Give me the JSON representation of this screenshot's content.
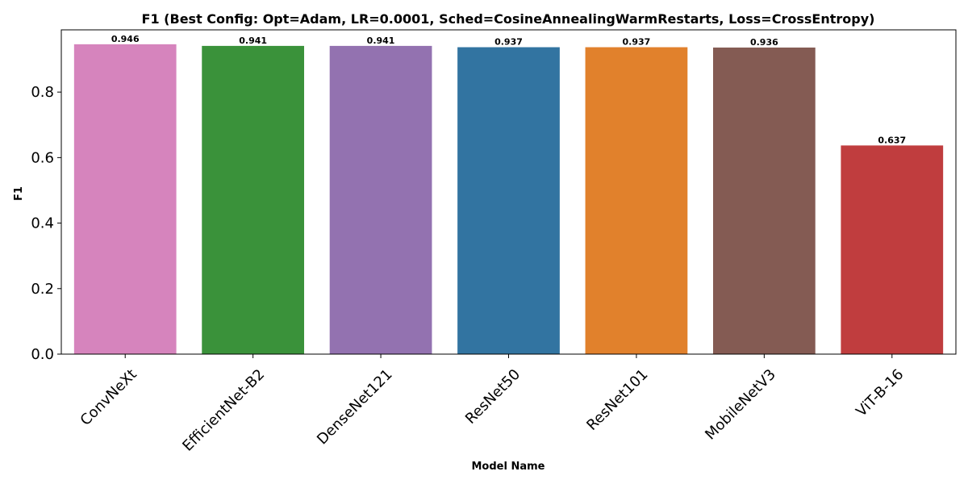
{
  "chart_data": {
    "type": "bar",
    "title": "F1 (Best Config: Opt=Adam, LR=0.0001, Sched=CosineAnnealingWarmRestarts, Loss=CrossEntropy)",
    "xlabel": "Model Name",
    "ylabel": "F1",
    "categories": [
      "ConvNeXt",
      "EfficientNet-B2",
      "DenseNet121",
      "ResNet50",
      "ResNet101",
      "MobileNetV3",
      "ViT-B-16"
    ],
    "values": [
      0.946,
      0.941,
      0.941,
      0.937,
      0.937,
      0.936,
      0.637
    ],
    "data_labels": [
      "0.946",
      "0.941",
      "0.941",
      "0.937",
      "0.937",
      "0.936",
      "0.637"
    ],
    "colors": [
      "#d684bd",
      "#3a923a",
      "#9372b0",
      "#3274a1",
      "#e1812c",
      "#845b53",
      "#c03d3e"
    ],
    "ylim": [
      0,
      0.99
    ],
    "yticks": [
      0.0,
      0.2,
      0.4,
      0.6,
      0.8
    ],
    "ytick_labels": [
      "0.0",
      "0.2",
      "0.4",
      "0.6",
      "0.8"
    ],
    "xtick_rotation": 45,
    "grid": false,
    "legend": "none"
  }
}
